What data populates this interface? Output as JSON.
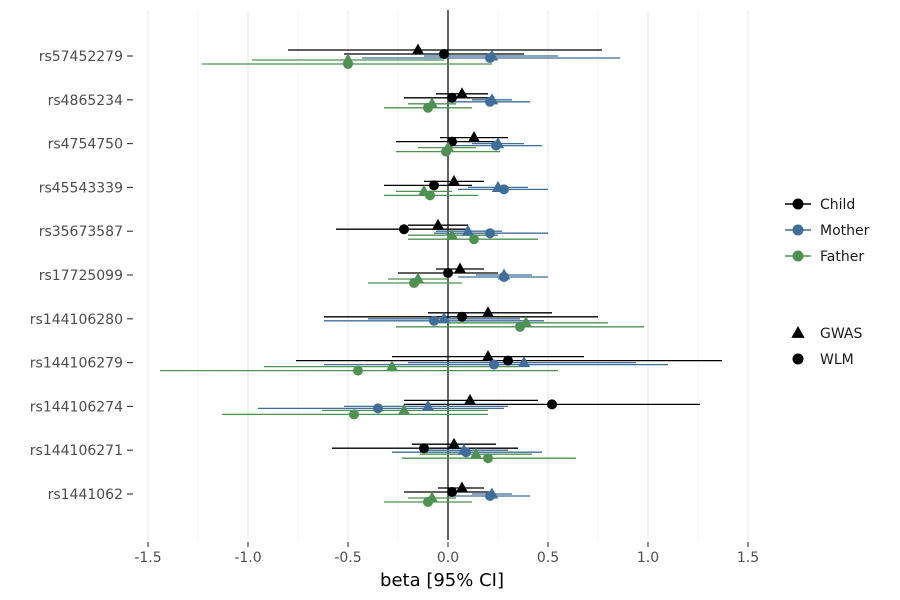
{
  "chart_data": {
    "type": "forest",
    "xlabel": "beta [95% CI]",
    "ylabel": "",
    "title": "",
    "xlim": [
      -1.6,
      1.5
    ],
    "x_ticks": [
      "-1.5",
      "-1.0",
      "-0.5",
      "0.0",
      "0.5",
      "1.0",
      "1.5"
    ],
    "x_tick_values": [
      -1.5,
      -1.0,
      -0.5,
      0.0,
      0.5,
      1.0,
      1.5
    ],
    "grid": true,
    "zero_line": true,
    "categories": [
      "rs57452279",
      "rs4865234",
      "rs4754750",
      "rs45543339",
      "rs35673587",
      "rs17725099",
      "rs144106280",
      "rs144106279",
      "rs144106274",
      "rs144106271",
      "rs1441062"
    ],
    "legend_position": "right",
    "legend": {
      "colour": [
        {
          "name": "Child",
          "color": "#000000"
        },
        {
          "name": "Mother",
          "color": "#3f6e9b"
        },
        {
          "name": "Father",
          "color": "#4e9152"
        }
      ],
      "shape": [
        {
          "name": "GWAS",
          "shape": "triangle"
        },
        {
          "name": "WLM",
          "shape": "circle"
        }
      ]
    },
    "series": [
      {
        "name": "Child GWAS",
        "parent": "Child",
        "method": "GWAS",
        "color": "#000000",
        "points": [
          {
            "snp": "rs57452279",
            "beta": -0.15,
            "lo": -0.8,
            "hi": 0.77
          },
          {
            "snp": "rs4865234",
            "beta": 0.07,
            "lo": -0.06,
            "hi": 0.2
          },
          {
            "snp": "rs4754750",
            "beta": 0.13,
            "lo": -0.04,
            "hi": 0.3
          },
          {
            "snp": "rs45543339",
            "beta": 0.03,
            "lo": -0.12,
            "hi": 0.18
          },
          {
            "snp": "rs35673587",
            "beta": -0.05,
            "lo": -0.2,
            "hi": 0.1
          },
          {
            "snp": "rs17725099",
            "beta": 0.06,
            "lo": -0.06,
            "hi": 0.18
          },
          {
            "snp": "rs144106280",
            "beta": 0.2,
            "lo": -0.1,
            "hi": 0.52
          },
          {
            "snp": "rs144106279",
            "beta": 0.2,
            "lo": -0.28,
            "hi": 0.68
          },
          {
            "snp": "rs144106274",
            "beta": 0.11,
            "lo": -0.22,
            "hi": 0.45
          },
          {
            "snp": "rs144106271",
            "beta": 0.03,
            "lo": -0.18,
            "hi": 0.24
          },
          {
            "snp": "rs1441062",
            "beta": 0.07,
            "lo": -0.05,
            "hi": 0.18
          }
        ]
      },
      {
        "name": "Child WLM",
        "parent": "Child",
        "method": "WLM",
        "color": "#000000",
        "points": [
          {
            "snp": "rs57452279",
            "beta": -0.02,
            "lo": -0.52,
            "hi": 0.38
          },
          {
            "snp": "rs4865234",
            "beta": 0.02,
            "lo": -0.22,
            "hi": 0.2
          },
          {
            "snp": "rs4754750",
            "beta": 0.02,
            "lo": -0.26,
            "hi": 0.25
          },
          {
            "snp": "rs45543339",
            "beta": -0.07,
            "lo": -0.32,
            "hi": 0.12
          },
          {
            "snp": "rs35673587",
            "beta": -0.22,
            "lo": -0.56,
            "hi": 0.1
          },
          {
            "snp": "rs17725099",
            "beta": 0.0,
            "lo": -0.25,
            "hi": 0.25
          },
          {
            "snp": "rs144106280",
            "beta": 0.07,
            "lo": -0.62,
            "hi": 0.75
          },
          {
            "snp": "rs144106279",
            "beta": 0.3,
            "lo": -0.76,
            "hi": 1.37
          },
          {
            "snp": "rs144106274",
            "beta": 0.52,
            "lo": -0.22,
            "hi": 1.26
          },
          {
            "snp": "rs144106271",
            "beta": -0.12,
            "lo": -0.58,
            "hi": 0.35
          },
          {
            "snp": "rs1441062",
            "beta": 0.02,
            "lo": -0.22,
            "hi": 0.2
          }
        ]
      },
      {
        "name": "Mother GWAS",
        "parent": "Mother",
        "method": "GWAS",
        "color": "#3f6e9b",
        "points": [
          {
            "snp": "rs57452279",
            "beta": 0.22,
            "lo": -0.12,
            "hi": 0.55
          },
          {
            "snp": "rs4865234",
            "beta": 0.22,
            "lo": 0.12,
            "hi": 0.32
          },
          {
            "snp": "rs4754750",
            "beta": 0.25,
            "lo": 0.12,
            "hi": 0.38
          },
          {
            "snp": "rs45543339",
            "beta": 0.25,
            "lo": 0.1,
            "hi": 0.4
          },
          {
            "snp": "rs35673587",
            "beta": 0.1,
            "lo": -0.06,
            "hi": 0.27
          },
          {
            "snp": "rs17725099",
            "beta": 0.28,
            "lo": 0.14,
            "hi": 0.42
          },
          {
            "snp": "rs144106280",
            "beta": -0.02,
            "lo": -0.4,
            "hi": 0.36
          },
          {
            "snp": "rs144106279",
            "beta": 0.38,
            "lo": -0.2,
            "hi": 0.94
          },
          {
            "snp": "rs144106274",
            "beta": -0.1,
            "lo": -0.52,
            "hi": 0.3
          },
          {
            "snp": "rs144106271",
            "beta": 0.08,
            "lo": -0.13,
            "hi": 0.3
          },
          {
            "snp": "rs1441062",
            "beta": 0.22,
            "lo": 0.12,
            "hi": 0.32
          }
        ]
      },
      {
        "name": "Mother WLM",
        "parent": "Mother",
        "method": "WLM",
        "color": "#3f6e9b",
        "points": [
          {
            "snp": "rs57452279",
            "beta": 0.21,
            "lo": -0.43,
            "hi": 0.86
          },
          {
            "snp": "rs4865234",
            "beta": 0.21,
            "lo": 0.0,
            "hi": 0.41
          },
          {
            "snp": "rs4754750",
            "beta": 0.24,
            "lo": 0.03,
            "hi": 0.47
          },
          {
            "snp": "rs45543339",
            "beta": 0.28,
            "lo": 0.05,
            "hi": 0.5
          },
          {
            "snp": "rs35673587",
            "beta": 0.21,
            "lo": -0.07,
            "hi": 0.5
          },
          {
            "snp": "rs17725099",
            "beta": 0.28,
            "lo": 0.05,
            "hi": 0.5
          },
          {
            "snp": "rs144106280",
            "beta": -0.07,
            "lo": -0.62,
            "hi": 0.48
          },
          {
            "snp": "rs144106279",
            "beta": 0.23,
            "lo": -0.62,
            "hi": 1.1
          },
          {
            "snp": "rs144106274",
            "beta": -0.35,
            "lo": -0.95,
            "hi": 0.28
          },
          {
            "snp": "rs144106271",
            "beta": 0.09,
            "lo": -0.28,
            "hi": 0.47
          },
          {
            "snp": "rs1441062",
            "beta": 0.21,
            "lo": 0.0,
            "hi": 0.41
          }
        ]
      },
      {
        "name": "Father GWAS",
        "parent": "Father",
        "method": "GWAS",
        "color": "#4e9152",
        "points": [
          {
            "snp": "rs57452279",
            "beta": -0.5,
            "lo": -0.98,
            "hi": -0.02
          },
          {
            "snp": "rs4865234",
            "beta": -0.08,
            "lo": -0.2,
            "hi": 0.04
          },
          {
            "snp": "rs4754750",
            "beta": 0.0,
            "lo": -0.15,
            "hi": 0.14
          },
          {
            "snp": "rs45543339",
            "beta": -0.12,
            "lo": -0.26,
            "hi": 0.02
          },
          {
            "snp": "rs35673587",
            "beta": 0.02,
            "lo": -0.2,
            "hi": 0.25
          },
          {
            "snp": "rs17725099",
            "beta": -0.15,
            "lo": -0.3,
            "hi": 0.0
          },
          {
            "snp": "rs144106280",
            "beta": 0.39,
            "lo": 0.0,
            "hi": 0.8
          },
          {
            "snp": "rs144106279",
            "beta": -0.28,
            "lo": -0.92,
            "hi": 0.35
          },
          {
            "snp": "rs144106274",
            "beta": -0.22,
            "lo": -0.63,
            "hi": 0.2
          },
          {
            "snp": "rs144106271",
            "beta": 0.14,
            "lo": -0.14,
            "hi": 0.42
          },
          {
            "snp": "rs1441062",
            "beta": -0.08,
            "lo": -0.2,
            "hi": 0.04
          }
        ]
      },
      {
        "name": "Father WLM",
        "parent": "Father",
        "method": "WLM",
        "color": "#4e9152",
        "points": [
          {
            "snp": "rs57452279",
            "beta": -0.5,
            "lo": -1.23,
            "hi": 0.22
          },
          {
            "snp": "rs4865234",
            "beta": -0.1,
            "lo": -0.32,
            "hi": 0.12
          },
          {
            "snp": "rs4754750",
            "beta": -0.01,
            "lo": -0.26,
            "hi": 0.26
          },
          {
            "snp": "rs45543339",
            "beta": -0.09,
            "lo": -0.32,
            "hi": 0.15
          },
          {
            "snp": "rs35673587",
            "beta": 0.13,
            "lo": -0.2,
            "hi": 0.45
          },
          {
            "snp": "rs17725099",
            "beta": -0.17,
            "lo": -0.4,
            "hi": 0.07
          },
          {
            "snp": "rs144106280",
            "beta": 0.36,
            "lo": -0.26,
            "hi": 0.98
          },
          {
            "snp": "rs144106279",
            "beta": -0.45,
            "lo": -1.44,
            "hi": 0.55
          },
          {
            "snp": "rs144106274",
            "beta": -0.47,
            "lo": -1.13,
            "hi": 0.2
          },
          {
            "snp": "rs144106271",
            "beta": 0.2,
            "lo": -0.23,
            "hi": 0.64
          },
          {
            "snp": "rs1441062",
            "beta": -0.1,
            "lo": -0.32,
            "hi": 0.12
          }
        ]
      }
    ]
  }
}
